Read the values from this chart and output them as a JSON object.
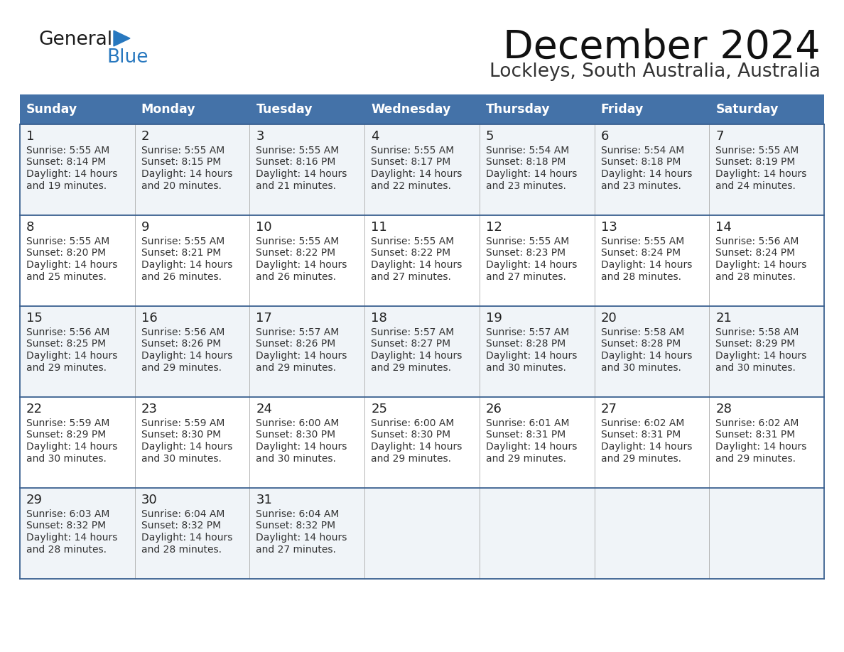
{
  "title": "December 2024",
  "subtitle": "Lockleys, South Australia, Australia",
  "days_of_week": [
    "Sunday",
    "Monday",
    "Tuesday",
    "Wednesday",
    "Thursday",
    "Friday",
    "Saturday"
  ],
  "header_bg": "#4472a8",
  "header_text_color": "#ffffff",
  "row_bg_odd": "#f0f4f8",
  "row_bg_even": "#ffffff",
  "cell_border_color": "#3a6090",
  "day_num_color": "#222222",
  "cell_text_color": "#333333",
  "logo_general_color": "#1a1a1a",
  "logo_blue_color": "#2878bf",
  "calendar_data": [
    [
      {
        "day": 1,
        "sunrise": "5:55 AM",
        "sunset": "8:14 PM",
        "daylight_suffix": "19 minutes."
      },
      {
        "day": 2,
        "sunrise": "5:55 AM",
        "sunset": "8:15 PM",
        "daylight_suffix": "20 minutes."
      },
      {
        "day": 3,
        "sunrise": "5:55 AM",
        "sunset": "8:16 PM",
        "daylight_suffix": "21 minutes."
      },
      {
        "day": 4,
        "sunrise": "5:55 AM",
        "sunset": "8:17 PM",
        "daylight_suffix": "22 minutes."
      },
      {
        "day": 5,
        "sunrise": "5:54 AM",
        "sunset": "8:18 PM",
        "daylight_suffix": "23 minutes."
      },
      {
        "day": 6,
        "sunrise": "5:54 AM",
        "sunset": "8:18 PM",
        "daylight_suffix": "23 minutes."
      },
      {
        "day": 7,
        "sunrise": "5:55 AM",
        "sunset": "8:19 PM",
        "daylight_suffix": "24 minutes."
      }
    ],
    [
      {
        "day": 8,
        "sunrise": "5:55 AM",
        "sunset": "8:20 PM",
        "daylight_suffix": "25 minutes."
      },
      {
        "day": 9,
        "sunrise": "5:55 AM",
        "sunset": "8:21 PM",
        "daylight_suffix": "26 minutes."
      },
      {
        "day": 10,
        "sunrise": "5:55 AM",
        "sunset": "8:22 PM",
        "daylight_suffix": "26 minutes."
      },
      {
        "day": 11,
        "sunrise": "5:55 AM",
        "sunset": "8:22 PM",
        "daylight_suffix": "27 minutes."
      },
      {
        "day": 12,
        "sunrise": "5:55 AM",
        "sunset": "8:23 PM",
        "daylight_suffix": "27 minutes."
      },
      {
        "day": 13,
        "sunrise": "5:55 AM",
        "sunset": "8:24 PM",
        "daylight_suffix": "28 minutes."
      },
      {
        "day": 14,
        "sunrise": "5:56 AM",
        "sunset": "8:24 PM",
        "daylight_suffix": "28 minutes."
      }
    ],
    [
      {
        "day": 15,
        "sunrise": "5:56 AM",
        "sunset": "8:25 PM",
        "daylight_suffix": "29 minutes."
      },
      {
        "day": 16,
        "sunrise": "5:56 AM",
        "sunset": "8:26 PM",
        "daylight_suffix": "29 minutes."
      },
      {
        "day": 17,
        "sunrise": "5:57 AM",
        "sunset": "8:26 PM",
        "daylight_suffix": "29 minutes."
      },
      {
        "day": 18,
        "sunrise": "5:57 AM",
        "sunset": "8:27 PM",
        "daylight_suffix": "29 minutes."
      },
      {
        "day": 19,
        "sunrise": "5:57 AM",
        "sunset": "8:28 PM",
        "daylight_suffix": "30 minutes."
      },
      {
        "day": 20,
        "sunrise": "5:58 AM",
        "sunset": "8:28 PM",
        "daylight_suffix": "30 minutes."
      },
      {
        "day": 21,
        "sunrise": "5:58 AM",
        "sunset": "8:29 PM",
        "daylight_suffix": "30 minutes."
      }
    ],
    [
      {
        "day": 22,
        "sunrise": "5:59 AM",
        "sunset": "8:29 PM",
        "daylight_suffix": "30 minutes."
      },
      {
        "day": 23,
        "sunrise": "5:59 AM",
        "sunset": "8:30 PM",
        "daylight_suffix": "30 minutes."
      },
      {
        "day": 24,
        "sunrise": "6:00 AM",
        "sunset": "8:30 PM",
        "daylight_suffix": "30 minutes."
      },
      {
        "day": 25,
        "sunrise": "6:00 AM",
        "sunset": "8:30 PM",
        "daylight_suffix": "29 minutes."
      },
      {
        "day": 26,
        "sunrise": "6:01 AM",
        "sunset": "8:31 PM",
        "daylight_suffix": "29 minutes."
      },
      {
        "day": 27,
        "sunrise": "6:02 AM",
        "sunset": "8:31 PM",
        "daylight_suffix": "29 minutes."
      },
      {
        "day": 28,
        "sunrise": "6:02 AM",
        "sunset": "8:31 PM",
        "daylight_suffix": "29 minutes."
      }
    ],
    [
      {
        "day": 29,
        "sunrise": "6:03 AM",
        "sunset": "8:32 PM",
        "daylight_suffix": "28 minutes."
      },
      {
        "day": 30,
        "sunrise": "6:04 AM",
        "sunset": "8:32 PM",
        "daylight_suffix": "28 minutes."
      },
      {
        "day": 31,
        "sunrise": "6:04 AM",
        "sunset": "8:32 PM",
        "daylight_suffix": "27 minutes."
      },
      null,
      null,
      null,
      null
    ]
  ]
}
